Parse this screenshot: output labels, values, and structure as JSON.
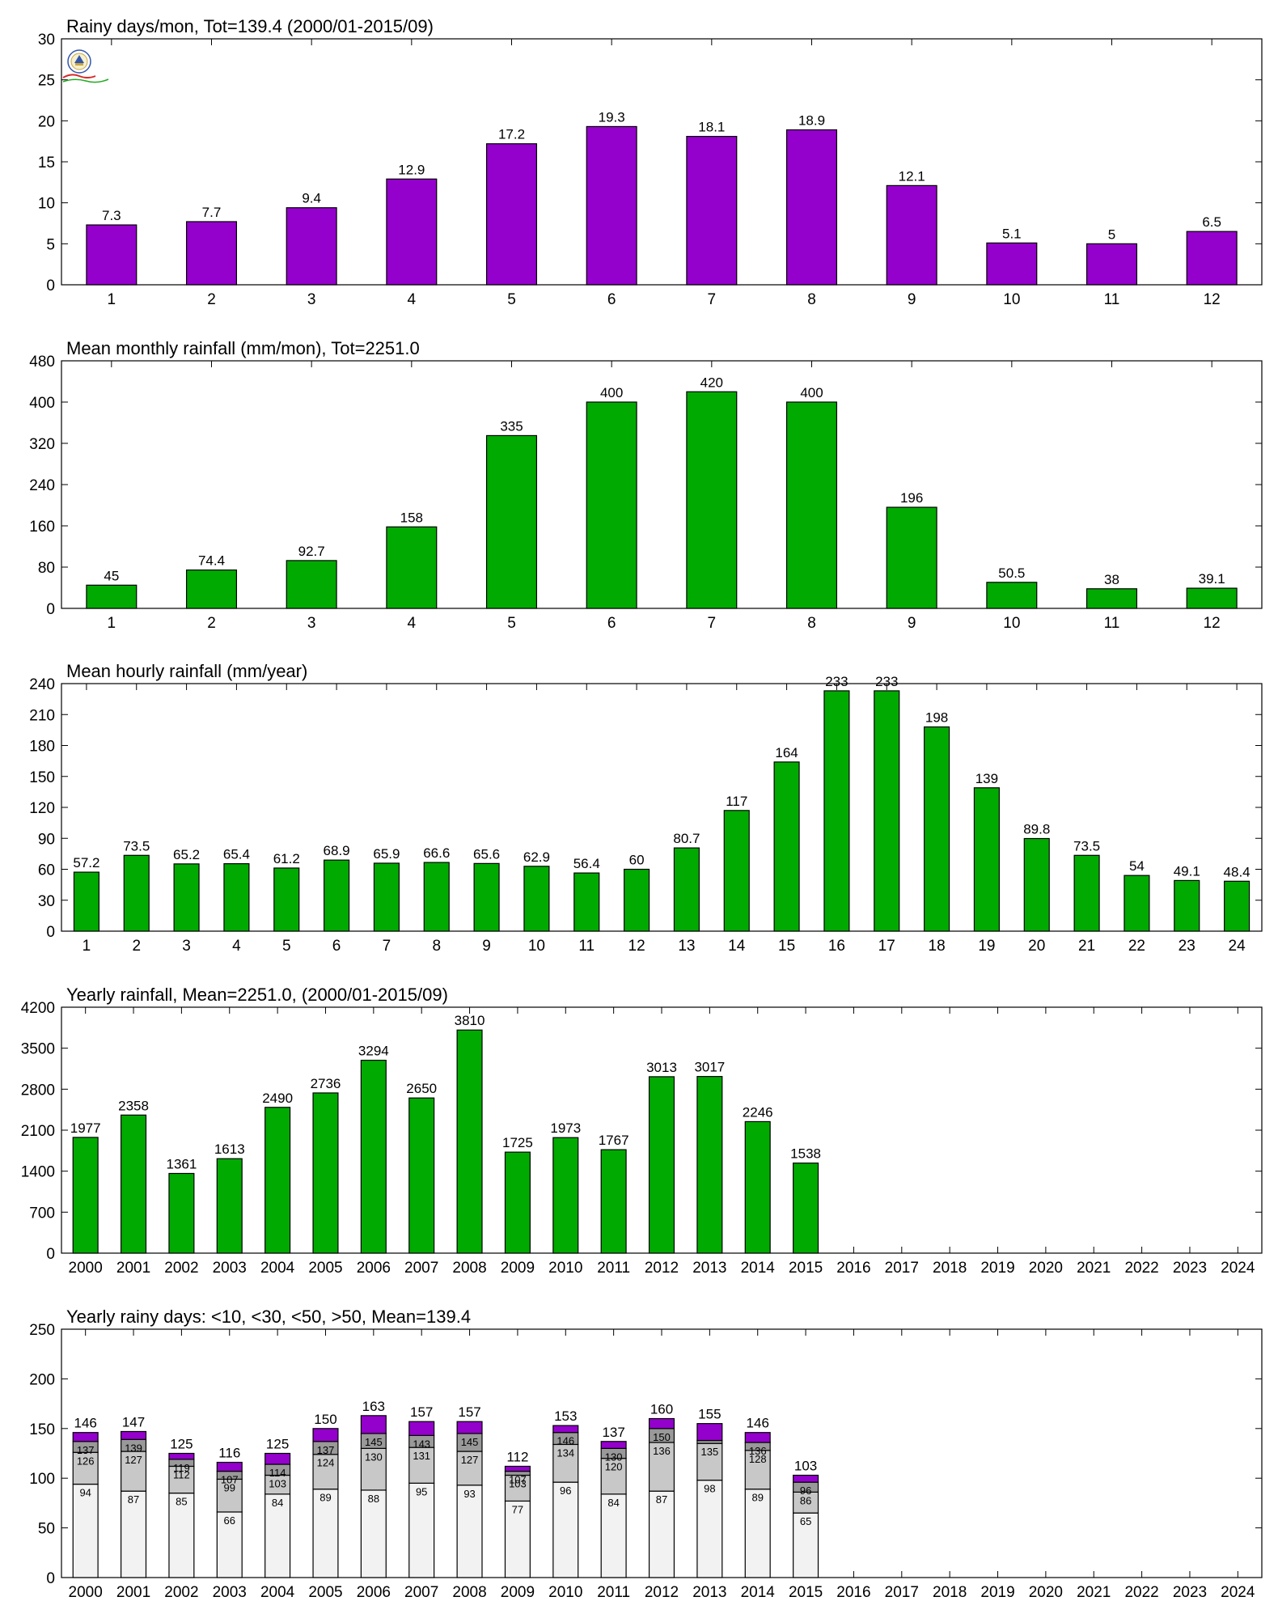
{
  "colors": {
    "purple": "#9400CC",
    "green": "#00AA00",
    "light": "#F2F2F2",
    "mid": "#C8C8C8",
    "dark": "#999999"
  },
  "charts": [
    {
      "type": "bar",
      "title": "Rainy days/mon, Tot=139.4 (2000/01-2015/09)",
      "categories": [
        "1",
        "2",
        "3",
        "4",
        "5",
        "6",
        "7",
        "8",
        "9",
        "10",
        "11",
        "12"
      ],
      "values": [
        7.3,
        7.7,
        9.4,
        12.9,
        17.2,
        19.3,
        18.1,
        18.9,
        12.1,
        5.1,
        5,
        6.5
      ],
      "labels": [
        "7.3",
        "7.7",
        "9.4",
        "12.9",
        "17.2",
        "19.3",
        "18.1",
        "18.9",
        "12.1",
        "5.1",
        "5",
        "6.5"
      ],
      "yticks": [
        0,
        5,
        10,
        15,
        20,
        25,
        30
      ],
      "ylim": [
        0,
        30
      ],
      "color": "purple"
    },
    {
      "type": "bar",
      "title": "Mean monthly rainfall (mm/mon), Tot=2251.0",
      "categories": [
        "1",
        "2",
        "3",
        "4",
        "5",
        "6",
        "7",
        "8",
        "9",
        "10",
        "11",
        "12"
      ],
      "values": [
        45,
        74.4,
        92.7,
        158,
        335,
        400,
        420,
        400,
        196,
        50.5,
        38,
        39.1
      ],
      "labels": [
        "45",
        "74.4",
        "92.7",
        "158",
        "335",
        "400",
        "420",
        "400",
        "196",
        "50.5",
        "38",
        "39.1"
      ],
      "yticks": [
        0,
        80,
        160,
        240,
        320,
        400,
        480
      ],
      "ylim": [
        0,
        480
      ],
      "color": "green"
    },
    {
      "type": "bar",
      "title": "Mean hourly rainfall (mm/year)",
      "categories": [
        "1",
        "2",
        "3",
        "4",
        "5",
        "6",
        "7",
        "8",
        "9",
        "10",
        "11",
        "12",
        "13",
        "14",
        "15",
        "16",
        "17",
        "18",
        "19",
        "20",
        "21",
        "22",
        "23",
        "24"
      ],
      "values": [
        57.2,
        73.5,
        65.2,
        65.4,
        61.2,
        68.9,
        65.9,
        66.6,
        65.6,
        62.9,
        56.4,
        60,
        80.7,
        117,
        164,
        233,
        233,
        198,
        139,
        89.8,
        73.5,
        54,
        49.1,
        48.4
      ],
      "labels": [
        "57.2",
        "73.5",
        "65.2",
        "65.4",
        "61.2",
        "68.9",
        "65.9",
        "66.6",
        "65.6",
        "62.9",
        "56.4",
        "60",
        "80.7",
        "117",
        "164",
        "233",
        "233",
        "198",
        "139",
        "89.8",
        "73.5",
        "54",
        "49.1",
        "48.4"
      ],
      "yticks": [
        0,
        30,
        60,
        90,
        120,
        150,
        180,
        210,
        240
      ],
      "ylim": [
        0,
        240
      ],
      "color": "green"
    },
    {
      "type": "bar",
      "title": "Yearly rainfall, Mean=2251.0, (2000/01-2015/09)",
      "categories": [
        "2000",
        "2001",
        "2002",
        "2003",
        "2004",
        "2005",
        "2006",
        "2007",
        "2008",
        "2009",
        "2010",
        "2011",
        "2012",
        "2013",
        "2014",
        "2015",
        "2016",
        "2017",
        "2018",
        "2019",
        "2020",
        "2021",
        "2022",
        "2023",
        "2024"
      ],
      "values": [
        1977,
        2358,
        1361,
        1613,
        2490,
        2736,
        3294,
        2650,
        3810,
        1725,
        1973,
        1767,
        3013,
        3017,
        2246,
        1538,
        null,
        null,
        null,
        null,
        null,
        null,
        null,
        null,
        null
      ],
      "labels": [
        "1977",
        "2358",
        "1361",
        "1613",
        "2490",
        "2736",
        "3294",
        "2650",
        "3810",
        "1725",
        "1973",
        "1767",
        "3013",
        "3017",
        "2246",
        "1538"
      ],
      "yticks": [
        0,
        700,
        1400,
        2100,
        2800,
        3500,
        4200
      ],
      "ylim": [
        0,
        4200
      ],
      "color": "green"
    },
    {
      "type": "stacked-bar",
      "title": "Yearly rainy days: <10, <30, <50, >50, Mean=139.4",
      "categories": [
        "2000",
        "2001",
        "2002",
        "2003",
        "2004",
        "2005",
        "2006",
        "2007",
        "2008",
        "2009",
        "2010",
        "2011",
        "2012",
        "2013",
        "2014",
        "2015",
        "2016",
        "2017",
        "2018",
        "2019",
        "2020",
        "2021",
        "2022",
        "2023",
        "2024"
      ],
      "levels": [
        [
          94,
          126,
          137,
          146
        ],
        [
          87,
          127,
          139,
          147
        ],
        [
          85,
          112,
          119,
          125
        ],
        [
          66,
          99,
          107,
          116
        ],
        [
          84,
          103,
          114,
          125
        ],
        [
          89,
          124,
          137,
          150
        ],
        [
          88,
          130,
          145,
          163
        ],
        [
          95,
          131,
          143,
          157
        ],
        [
          93,
          127,
          145,
          157
        ],
        [
          77,
          103,
          107,
          112
        ],
        [
          96,
          134,
          146,
          153
        ],
        [
          84,
          120,
          130,
          137
        ],
        [
          87,
          136,
          150,
          160
        ],
        [
          98,
          135,
          138,
          155
        ],
        [
          89,
          128,
          136,
          146
        ],
        [
          65,
          86,
          96,
          103
        ],
        null,
        null,
        null,
        null,
        null,
        null,
        null,
        null,
        null
      ],
      "inner_labels": [
        [
          "94",
          "126",
          "137"
        ],
        [
          "87",
          "127",
          "139"
        ],
        [
          "85",
          "112",
          "119"
        ],
        [
          "66",
          "99",
          "107"
        ],
        [
          "84",
          "103",
          "114"
        ],
        [
          "89",
          "124",
          "137"
        ],
        [
          "88",
          "130",
          "145"
        ],
        [
          "95",
          "131",
          "143"
        ],
        [
          "93",
          "127",
          "145"
        ],
        [
          "77",
          "103",
          "107"
        ],
        [
          "96",
          "134",
          "146"
        ],
        [
          "84",
          "120",
          "130"
        ],
        [
          "87",
          "136",
          "150"
        ],
        [
          "98",
          "135",
          ""
        ],
        [
          "89",
          "128",
          "136"
        ],
        [
          "65",
          "86",
          "96"
        ]
      ],
      "labels": [
        "146",
        "147",
        "125",
        "116",
        "125",
        "150",
        "163",
        "157",
        "157",
        "112",
        "153",
        "137",
        "160",
        "155",
        "146",
        "103"
      ],
      "yticks": [
        0,
        50,
        100,
        150,
        200,
        250
      ],
      "ylim": [
        0,
        250
      ],
      "colors": [
        "light",
        "mid",
        "dark",
        "purple"
      ]
    }
  ]
}
